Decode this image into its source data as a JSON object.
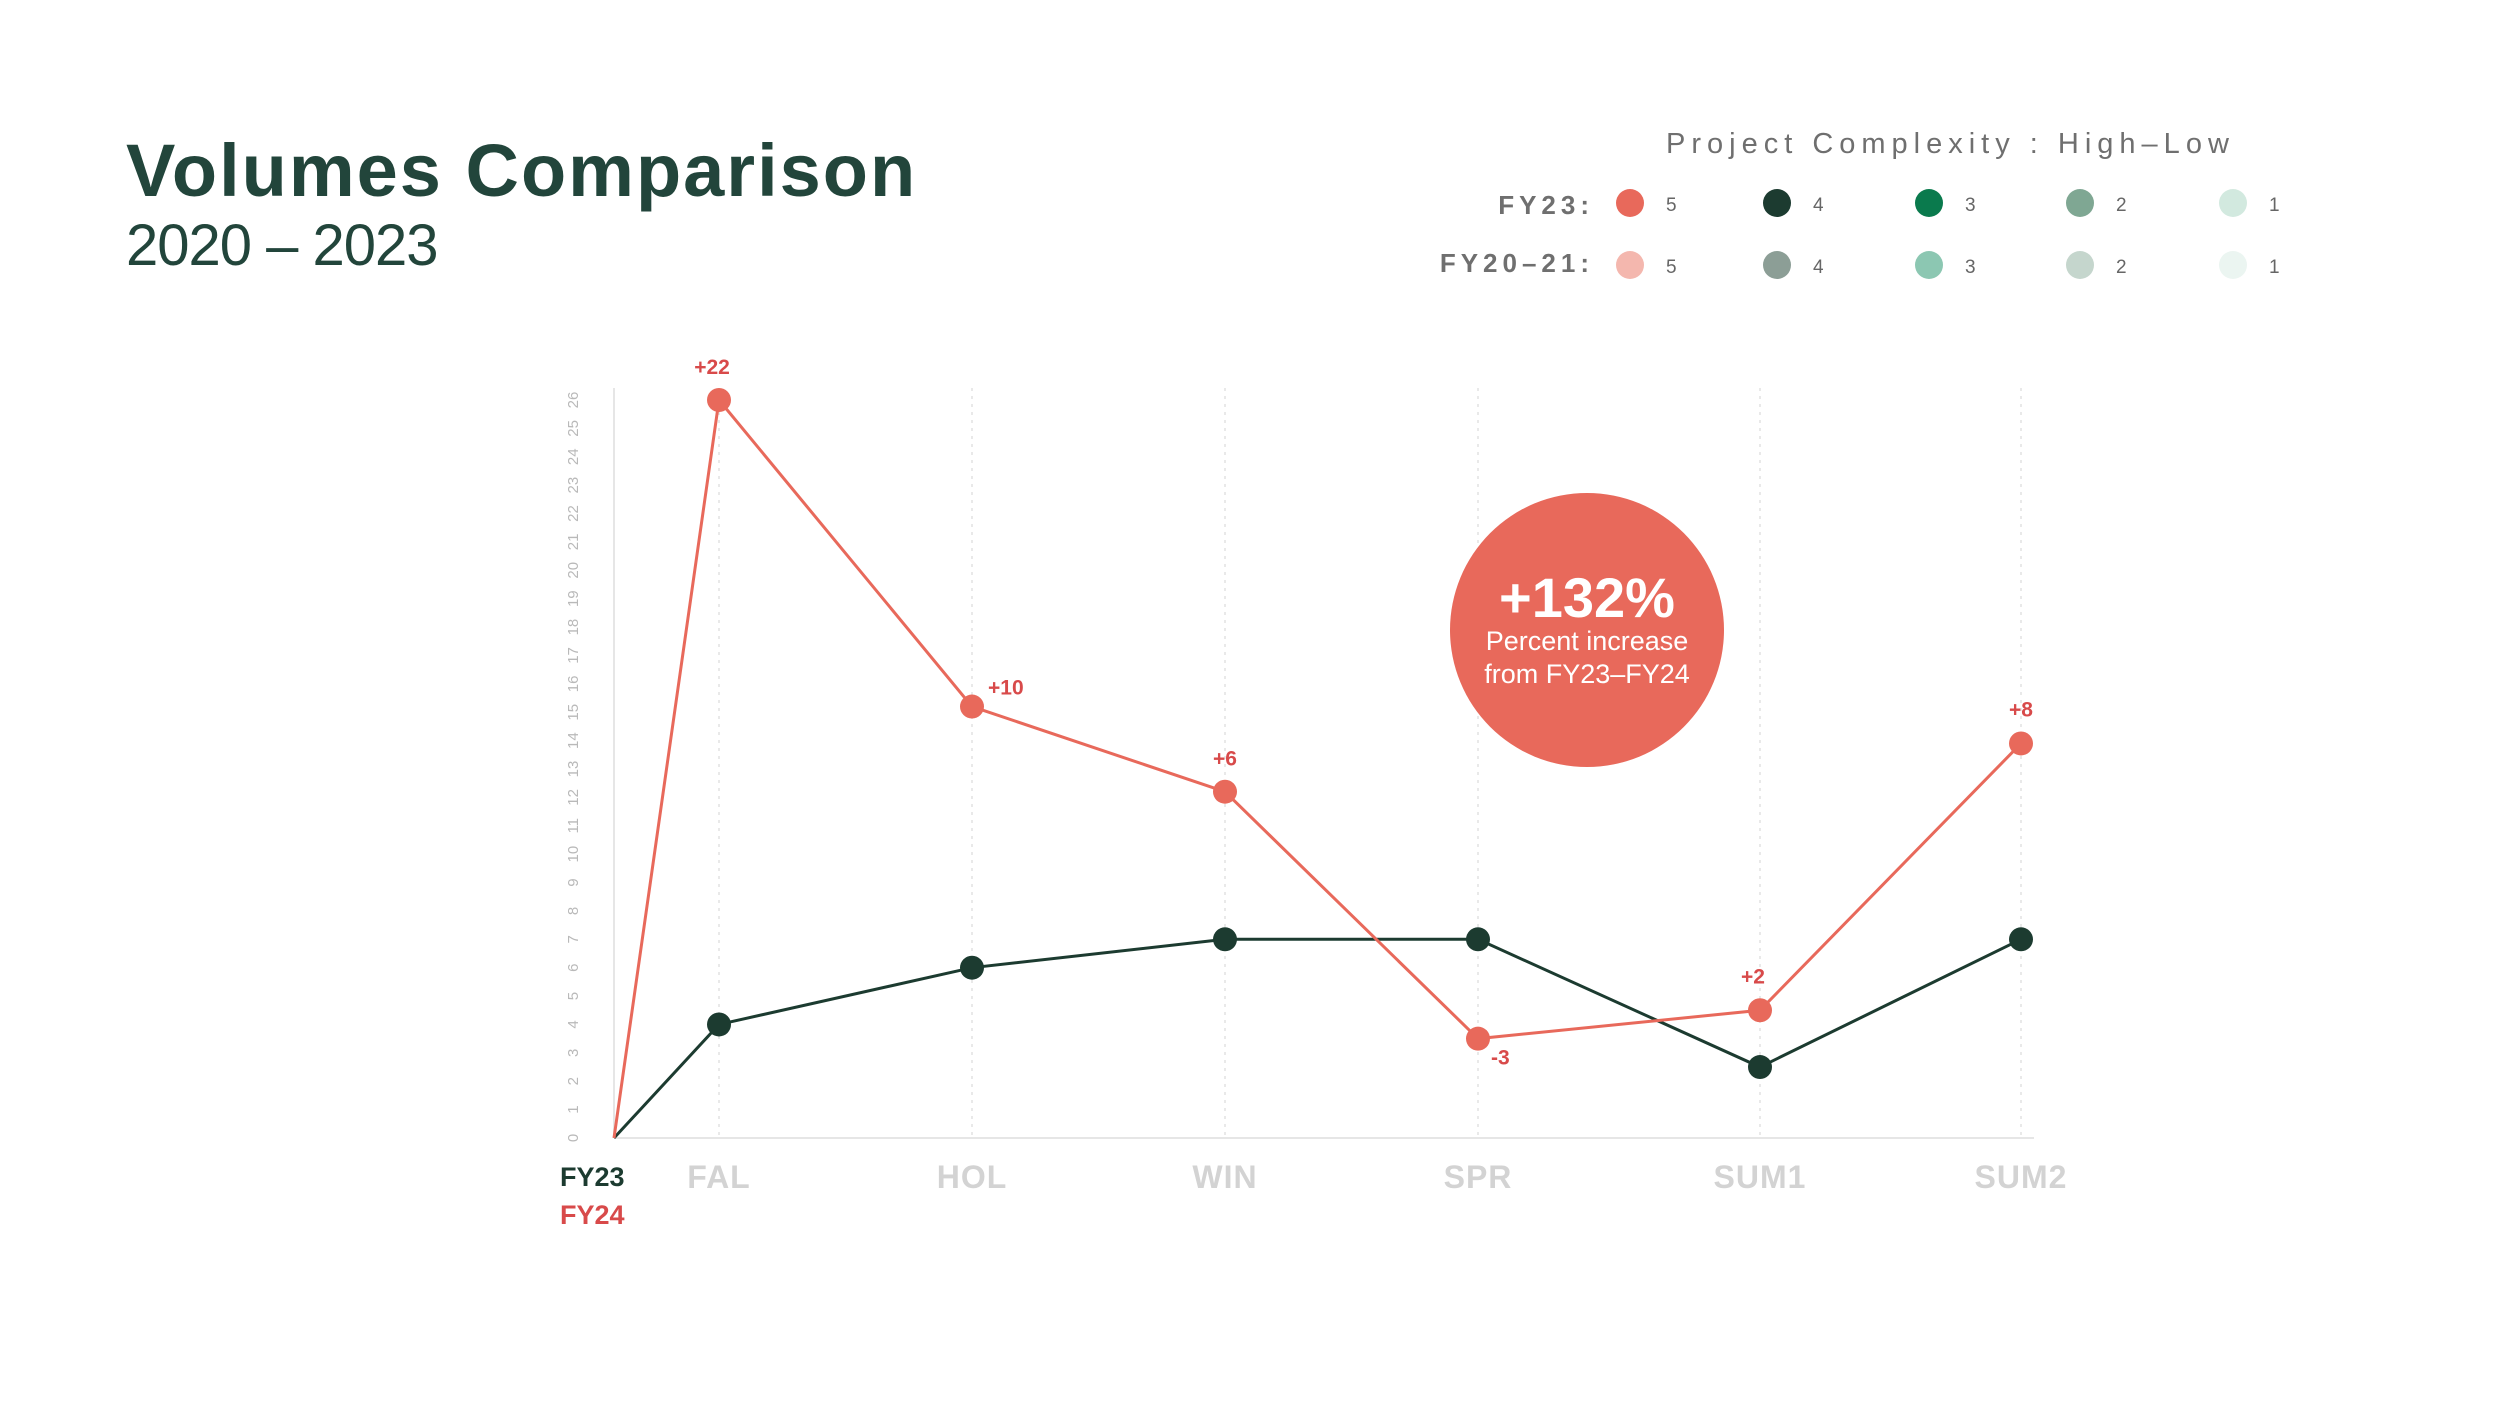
{
  "header": {
    "title": "Volumes Comparison",
    "subtitle": "2020 – 2023"
  },
  "legend": {
    "title": "Project Complexity : High–Low",
    "rows": [
      {
        "label": "FY23:",
        "items": [
          {
            "value": "5",
            "color": "#e8695b"
          },
          {
            "value": "4",
            "color": "#1c3b30"
          },
          {
            "value": "3",
            "color": "#0a7a4d"
          },
          {
            "value": "2",
            "color": "#7fa793"
          },
          {
            "value": "1",
            "color": "#d2e9df"
          }
        ]
      },
      {
        "label": "FY20–21:",
        "items": [
          {
            "value": "5",
            "color": "#f4b7ae"
          },
          {
            "value": "4",
            "color": "#8c9e96"
          },
          {
            "value": "3",
            "color": "#8cc7b2"
          },
          {
            "value": "2",
            "color": "#c5d6cd"
          },
          {
            "value": "1",
            "color": "#ebf5f1"
          }
        ]
      }
    ]
  },
  "callout": {
    "value": "+132%",
    "line1": "Percent increase",
    "line2": "from FY23–FY24",
    "color": "#e8695b"
  },
  "chart_data": {
    "type": "line",
    "title": "Volumes Comparison",
    "subtitle": "2020 – 2023",
    "categories": [
      "FAL",
      "HOL",
      "WIN",
      "SPR",
      "SUM1",
      "SUM2"
    ],
    "ylim": [
      0,
      26
    ],
    "yticks": [
      "0",
      "1",
      "2",
      "3",
      "4",
      "5",
      "6",
      "7",
      "8",
      "9",
      "10",
      "11",
      "12",
      "13",
      "14",
      "15",
      "16",
      "17",
      "18",
      "19",
      "20",
      "21",
      "22",
      "23",
      "24",
      "25",
      "26"
    ],
    "series": [
      {
        "name": "FY23",
        "color": "#1c3b30",
        "start": 0,
        "values": [
          4,
          6,
          7,
          7,
          2.5,
          7
        ]
      },
      {
        "name": "FY24",
        "color": "#e8695b",
        "label_color": "#d84a4a",
        "start": 0,
        "values": [
          26,
          15.2,
          12.2,
          3.5,
          4.5,
          13.9
        ]
      }
    ],
    "annotations": [
      "+22",
      "+10",
      "+6",
      "-3",
      "+2",
      "+8"
    ]
  }
}
